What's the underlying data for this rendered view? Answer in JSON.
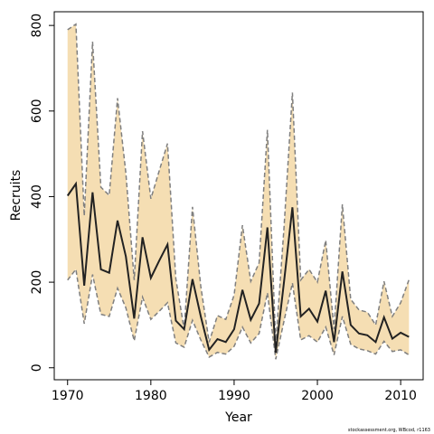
{
  "chart_data": {
    "type": "line",
    "title": "",
    "xlabel": "Year",
    "ylabel": "Recruits",
    "xlim": [
      1968.4,
      2012.7
    ],
    "ylim": [
      -28,
      832
    ],
    "xticks": [
      1970,
      1980,
      1990,
      2000,
      2010
    ],
    "yticks": [
      0,
      200,
      400,
      600,
      800
    ],
    "grid": false,
    "legend": "none",
    "colors": {
      "band": "#f5deb3",
      "bound_line": "#7f7f7f",
      "median_line": "#222222",
      "axis": "#000000"
    },
    "footnote": "stockassessment.org, WBcod, r1163",
    "x": [
      1970,
      1971,
      1972,
      1973,
      1974,
      1975,
      1976,
      1977,
      1978,
      1979,
      1980,
      1981,
      1982,
      1983,
      1984,
      1985,
      1986,
      1987,
      1988,
      1989,
      1990,
      1991,
      1992,
      1993,
      1994,
      1995,
      1996,
      1997,
      1998,
      1999,
      2000,
      2001,
      2002,
      2003,
      2004,
      2005,
      2006,
      2007,
      2008,
      2009,
      2010,
      2011
    ],
    "series": [
      {
        "role": "upper",
        "values": [
          790,
          803,
          355,
          762,
          422,
          403,
          630,
          455,
          205,
          553,
          395,
          460,
          524,
          208,
          90,
          376,
          190,
          60,
          122,
          113,
          170,
          333,
          202,
          245,
          556,
          55,
          330,
          643,
          205,
          230,
          200,
          298,
          90,
          382,
          160,
          135,
          130,
          100,
          202,
          120,
          152,
          206
        ]
      },
      {
        "role": "median",
        "values": [
          402,
          430,
          192,
          410,
          230,
          222,
          344,
          260,
          115,
          305,
          210,
          250,
          288,
          110,
          90,
          207,
          120,
          42,
          67,
          60,
          90,
          182,
          112,
          150,
          328,
          35,
          202,
          375,
          120,
          138,
          108,
          180,
          60,
          225,
          100,
          80,
          76,
          60,
          118,
          68,
          82,
          72
        ]
      },
      {
        "role": "lower",
        "values": [
          205,
          230,
          103,
          218,
          125,
          120,
          186,
          140,
          63,
          165,
          113,
          132,
          152,
          58,
          48,
          111,
          65,
          25,
          36,
          32,
          50,
          95,
          58,
          80,
          175,
          20,
          110,
          198,
          65,
          75,
          60,
          95,
          30,
          120,
          55,
          44,
          40,
          32,
          62,
          38,
          42,
          30
        ]
      }
    ]
  }
}
